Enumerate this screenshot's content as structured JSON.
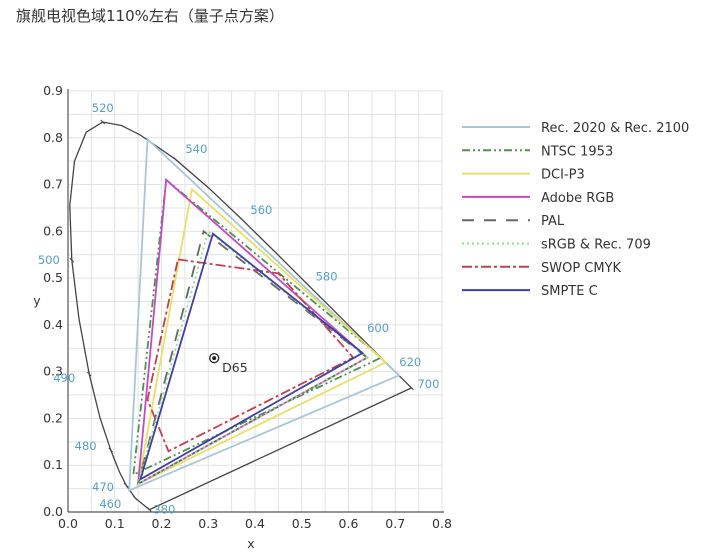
{
  "title": "旗舰电视色域110%左右（量子点方案）",
  "chart_data": {
    "type": "line",
    "title": "",
    "xlabel": "x",
    "ylabel": "y",
    "xlim": [
      0,
      0.8
    ],
    "ylim": [
      0,
      0.9
    ],
    "xticks": [
      "0.0",
      "0.1",
      "0.2",
      "0.3",
      "0.4",
      "0.5",
      "0.6",
      "0.7",
      "0.8"
    ],
    "yticks": [
      "0.0",
      "0.1",
      "0.2",
      "0.3",
      "0.4",
      "0.5",
      "0.6",
      "0.7",
      "0.8",
      "0.9"
    ],
    "grid": true,
    "legend_position": "right",
    "spectral_locus": [
      [
        380,
        0.1741,
        0.005
      ],
      [
        460,
        0.144,
        0.0297
      ],
      [
        470,
        0.1241,
        0.0578
      ],
      [
        475,
        0.1096,
        0.0868
      ],
      [
        480,
        0.0913,
        0.1327
      ],
      [
        485,
        0.0687,
        0.2007
      ],
      [
        490,
        0.0454,
        0.295
      ],
      [
        495,
        0.0235,
        0.4127
      ],
      [
        500,
        0.0082,
        0.5384
      ],
      [
        505,
        0.0039,
        0.6548
      ],
      [
        510,
        0.0139,
        0.7502
      ],
      [
        515,
        0.0389,
        0.812
      ],
      [
        520,
        0.0743,
        0.8338
      ],
      [
        525,
        0.1142,
        0.8262
      ],
      [
        530,
        0.1547,
        0.8059
      ],
      [
        540,
        0.2296,
        0.7543
      ],
      [
        550,
        0.3016,
        0.6923
      ],
      [
        560,
        0.3731,
        0.6245
      ],
      [
        570,
        0.4441,
        0.5547
      ],
      [
        580,
        0.5125,
        0.4866
      ],
      [
        590,
        0.5752,
        0.4242
      ],
      [
        600,
        0.627,
        0.3725
      ],
      [
        610,
        0.6658,
        0.334
      ],
      [
        620,
        0.6915,
        0.3083
      ],
      [
        640,
        0.719,
        0.2809
      ],
      [
        700,
        0.7347,
        0.2653
      ]
    ],
    "wavelength_labels": [
      "380",
      "460",
      "470",
      "480",
      "490",
      "500",
      "520",
      "540",
      "560",
      "580",
      "600",
      "620",
      "700"
    ],
    "white_point": {
      "label": "D65",
      "x": 0.3127,
      "y": 0.329
    },
    "series": [
      {
        "name": "Rec. 2020 & Rec. 2100",
        "color": "#a8c6d6",
        "dash": "",
        "points": [
          [
            0.708,
            0.292
          ],
          [
            0.17,
            0.797
          ],
          [
            0.131,
            0.046
          ]
        ]
      },
      {
        "name": "NTSC 1953",
        "color": "#4f8f4f",
        "dash": "8 3 2 3 2 3",
        "points": [
          [
            0.67,
            0.33
          ],
          [
            0.21,
            0.71
          ],
          [
            0.14,
            0.08
          ]
        ]
      },
      {
        "name": "DCI-P3",
        "color": "#e6df6a",
        "dash": "",
        "points": [
          [
            0.68,
            0.32
          ],
          [
            0.265,
            0.69
          ],
          [
            0.15,
            0.06
          ]
        ]
      },
      {
        "name": "Adobe RGB",
        "color": "#c04cc0",
        "dash": "",
        "points": [
          [
            0.64,
            0.33
          ],
          [
            0.21,
            0.71
          ],
          [
            0.15,
            0.06
          ]
        ]
      },
      {
        "name": "PAL",
        "color": "#666666",
        "dash": "12 10",
        "points": [
          [
            0.64,
            0.33
          ],
          [
            0.29,
            0.6
          ],
          [
            0.15,
            0.06
          ]
        ]
      },
      {
        "name": "sRGB & Rec. 709",
        "color": "#8fdf8f",
        "dash": "2 3",
        "points": [
          [
            0.64,
            0.33
          ],
          [
            0.3,
            0.6
          ],
          [
            0.15,
            0.06
          ]
        ]
      },
      {
        "name": "SWOP CMYK",
        "color": "#c0404f",
        "dash": "10 3 3 3",
        "points": [
          [
            0.235,
            0.54
          ],
          [
            0.45,
            0.51
          ],
          [
            0.61,
            0.33
          ],
          [
            0.215,
            0.13
          ],
          [
            0.17,
            0.24
          ]
        ]
      },
      {
        "name": "SMPTE C",
        "color": "#3f3f9f",
        "dash": "",
        "points": [
          [
            0.63,
            0.34
          ],
          [
            0.31,
            0.595
          ],
          [
            0.155,
            0.07
          ]
        ]
      }
    ]
  }
}
